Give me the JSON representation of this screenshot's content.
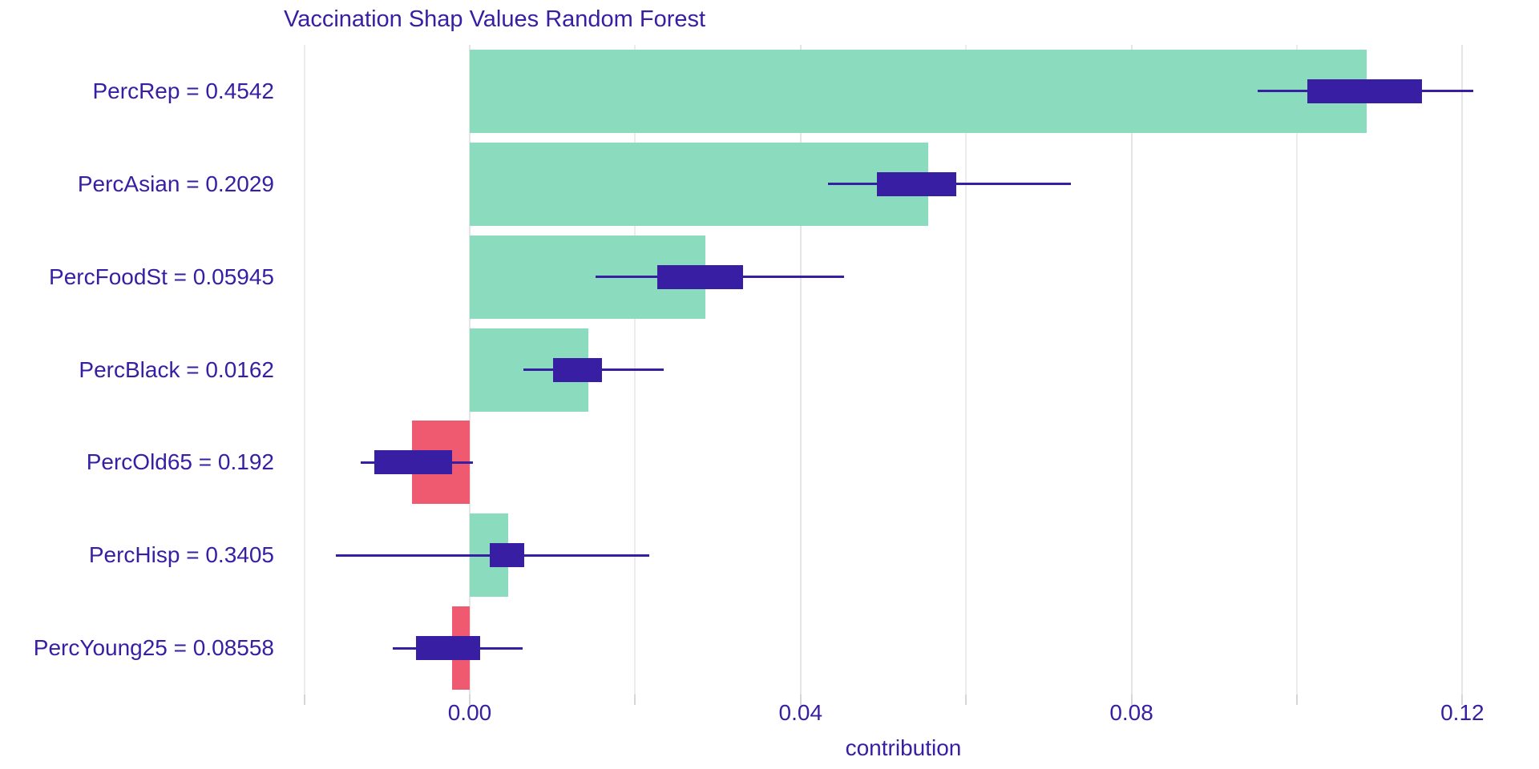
{
  "chart_data": {
    "type": "bar",
    "orientation": "horizontal",
    "title": "Vaccination Shap Values Random Forest",
    "xlabel": "contribution",
    "grid": true,
    "legend": false,
    "xlim": [
      -0.02306,
      0.12791
    ],
    "xticks": [
      {
        "value": 0.0,
        "label": "0.00"
      },
      {
        "value": 0.04,
        "label": "0.04"
      },
      {
        "value": 0.08,
        "label": "0.08"
      },
      {
        "value": 0.12,
        "label": "0.12"
      }
    ],
    "minor_ticks": [
      -0.02,
      0.02,
      0.06,
      0.1
    ],
    "colors": {
      "positive_bar": "#8bdcbe",
      "negative_bar": "#f05a71",
      "boxplot": "#371ea3",
      "text": "#371ea3",
      "gridline": "#e5e5e5"
    },
    "rows": [
      {
        "label": "PercRep = 0.4542",
        "shap_value": 0.1084,
        "box": [
          0.1013,
          0.1151
        ],
        "whiskers": [
          0.0953,
          0.1213
        ]
      },
      {
        "label": "PercAsian = 0.2029",
        "shap_value": 0.0554,
        "box": [
          0.0492,
          0.0588
        ],
        "whiskers": [
          0.0433,
          0.0727
        ]
      },
      {
        "label": "PercFoodSt = 0.05945",
        "shap_value": 0.0285,
        "box": [
          0.0227,
          0.033
        ],
        "whiskers": [
          0.0152,
          0.0453
        ]
      },
      {
        "label": "PercBlack = 0.0162",
        "shap_value": 0.0143,
        "box": [
          0.0101,
          0.016
        ],
        "whiskers": [
          0.0065,
          0.0235
        ]
      },
      {
        "label": "PercOld65 = 0.192",
        "shap_value": -0.007,
        "box": [
          -0.0115,
          -0.0021
        ],
        "whiskers": [
          -0.0132,
          0.0004
        ]
      },
      {
        "label": "PercHisp = 0.3405",
        "shap_value": 0.0047,
        "box": [
          0.0024,
          0.0066
        ],
        "whiskers": [
          -0.0162,
          0.0217
        ]
      },
      {
        "label": "PercYoung25 = 0.08558",
        "shap_value": -0.0021,
        "box": [
          -0.0065,
          0.0013
        ],
        "whiskers": [
          -0.0093,
          0.0064
        ]
      }
    ]
  }
}
